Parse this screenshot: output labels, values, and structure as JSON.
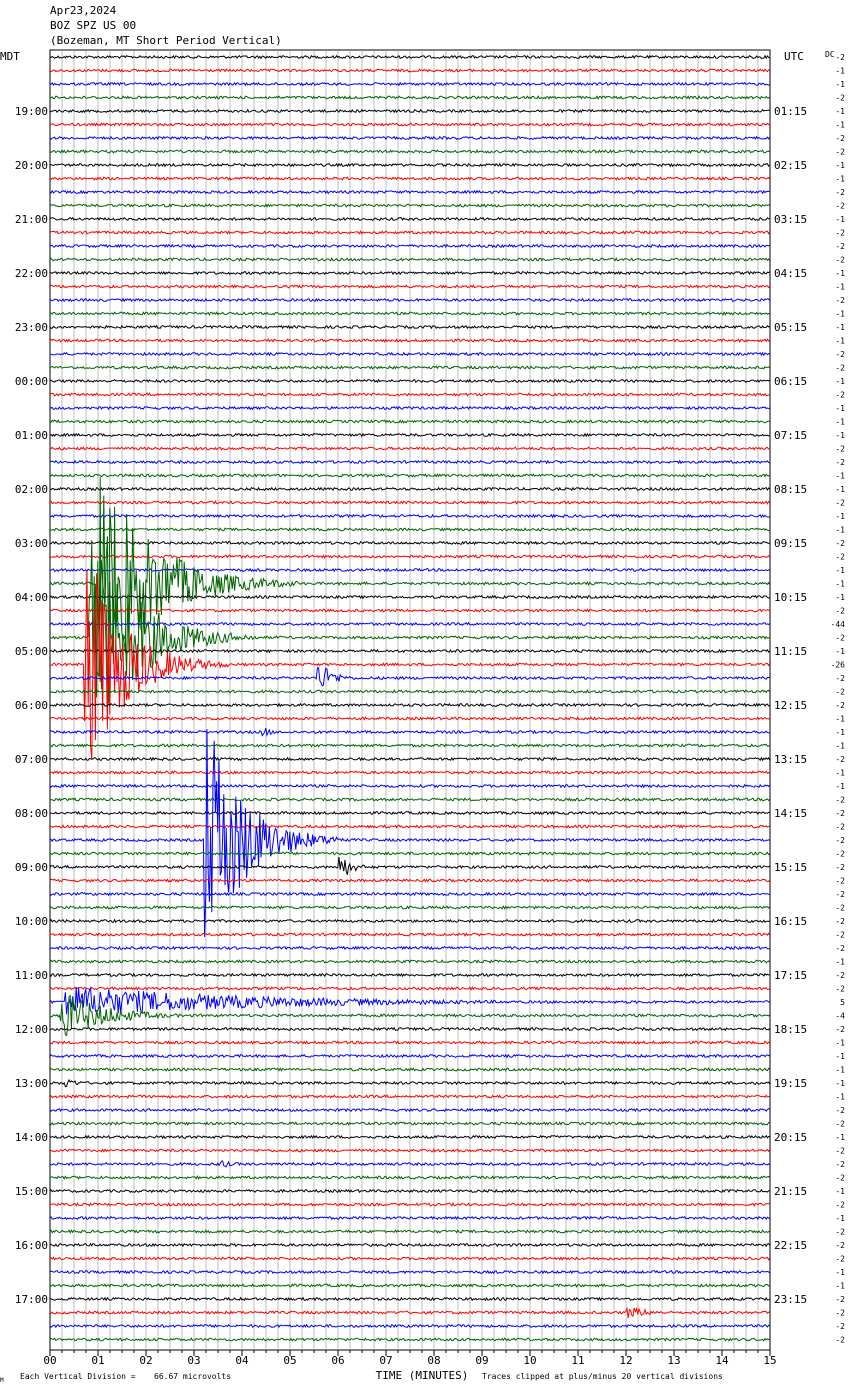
{
  "header": {
    "date": "Apr23,2024",
    "station": "BOZ SPZ US 00",
    "description": "(Bozeman, MT Short Period Vertical)"
  },
  "chart_data": {
    "type": "seismogram",
    "left_timezone": "MDT",
    "right_timezone": "UTC",
    "corner_label": "DC",
    "left_time_labels": [
      "19:00",
      "20:00",
      "21:00",
      "22:00",
      "23:00",
      "00:00",
      "01:00",
      "02:00",
      "03:00",
      "04:00",
      "05:00",
      "06:00",
      "07:00",
      "08:00",
      "09:00",
      "10:00",
      "11:00",
      "12:00",
      "13:00",
      "14:00",
      "15:00",
      "16:00",
      "17:00"
    ],
    "right_time_labels": [
      "01:15",
      "02:15",
      "03:15",
      "04:15",
      "05:15",
      "06:15",
      "07:15",
      "08:15",
      "09:15",
      "10:15",
      "11:15",
      "12:15",
      "13:15",
      "14:15",
      "15:15",
      "16:15",
      "17:15",
      "18:15",
      "19:15",
      "20:15",
      "21:15",
      "22:15",
      "23:15"
    ],
    "x_ticks": [
      "00",
      "01",
      "02",
      "03",
      "04",
      "05",
      "06",
      "07",
      "08",
      "09",
      "10",
      "11",
      "12",
      "13",
      "14",
      "15"
    ],
    "xlabel": "TIME (MINUTES)",
    "xlim": [
      0,
      15
    ],
    "trace_count": 96,
    "trace_colors": [
      "#000000",
      "#ff0000",
      "#0000ff",
      "#006400"
    ],
    "dc_offsets": [
      "-2",
      "-1",
      "-1",
      "-2",
      "-1",
      "-1",
      "-2",
      "-2",
      "-1",
      "-1",
      "-2",
      "-2",
      "-1",
      "-2",
      "-2",
      "-2",
      "-1",
      "-1",
      "-2",
      "-1",
      "-1",
      "-1",
      "-2",
      "-2",
      "-1",
      "-2",
      "-1",
      "-1",
      "-1",
      "-2",
      "-2",
      "-1",
      "-1",
      "-2",
      "-1",
      "-1",
      "-2",
      "-2",
      "-1",
      "-1",
      "-1",
      "-2",
      "-44",
      "-2",
      "-1",
      "-26",
      "-2",
      "-2",
      "-2",
      "-1",
      "-1",
      "-1",
      "-2",
      "-1",
      "-1",
      "-2",
      "-2",
      "-2",
      "-2",
      "-2",
      "-2",
      "-2",
      "-2",
      "-2",
      "-2",
      "-2",
      "-2",
      "-1",
      "-2",
      "-2",
      "5",
      "-4",
      "-2",
      "-1",
      "-1",
      "-1",
      "-1",
      "-1",
      "-2",
      "-2",
      "-1",
      "-2",
      "-2",
      "-2",
      "-1",
      "-2",
      "-1",
      "-2",
      "-2",
      "-2",
      "-1",
      "-1",
      "-2",
      "-2",
      "-2",
      "-2"
    ],
    "events": [
      {
        "trace": 39,
        "minute": 0.95,
        "amplitude": 20,
        "duration": 4.2,
        "label_color": "red"
      },
      {
        "trace": 43,
        "minute": 0.8,
        "amplitude": 20,
        "duration": 3.5
      },
      {
        "trace": 45,
        "minute": 0.7,
        "amplitude": 20,
        "duration": 3.0
      },
      {
        "trace": 46,
        "minute": 5.55,
        "amplitude": 3,
        "duration": 1.2
      },
      {
        "trace": 50,
        "minute": 4.4,
        "amplitude": 1,
        "duration": 0.8
      },
      {
        "trace": 58,
        "minute": 3.2,
        "amplitude": 20,
        "duration": 3.0
      },
      {
        "trace": 60,
        "minute": 6.0,
        "amplitude": 2.5,
        "duration": 1.0
      },
      {
        "trace": 70,
        "minute": 0.3,
        "amplitude": 2.5,
        "duration": 15
      },
      {
        "trace": 71,
        "minute": 0.2,
        "amplitude": 4,
        "duration": 3.5
      },
      {
        "trace": 76,
        "minute": 0.3,
        "amplitude": 1,
        "duration": 1.0
      },
      {
        "trace": 82,
        "minute": 3.5,
        "amplitude": 1,
        "duration": 0.8
      },
      {
        "trace": 93,
        "minute": 12.0,
        "amplitude": 1,
        "duration": 2.0
      }
    ]
  },
  "footer": {
    "division_label": "Each Vertical Division =",
    "division_value": "66.67 microvolts",
    "clip_note": "Traces clipped at plus/minus 20 vertical divisions",
    "corner_mark": "M"
  }
}
